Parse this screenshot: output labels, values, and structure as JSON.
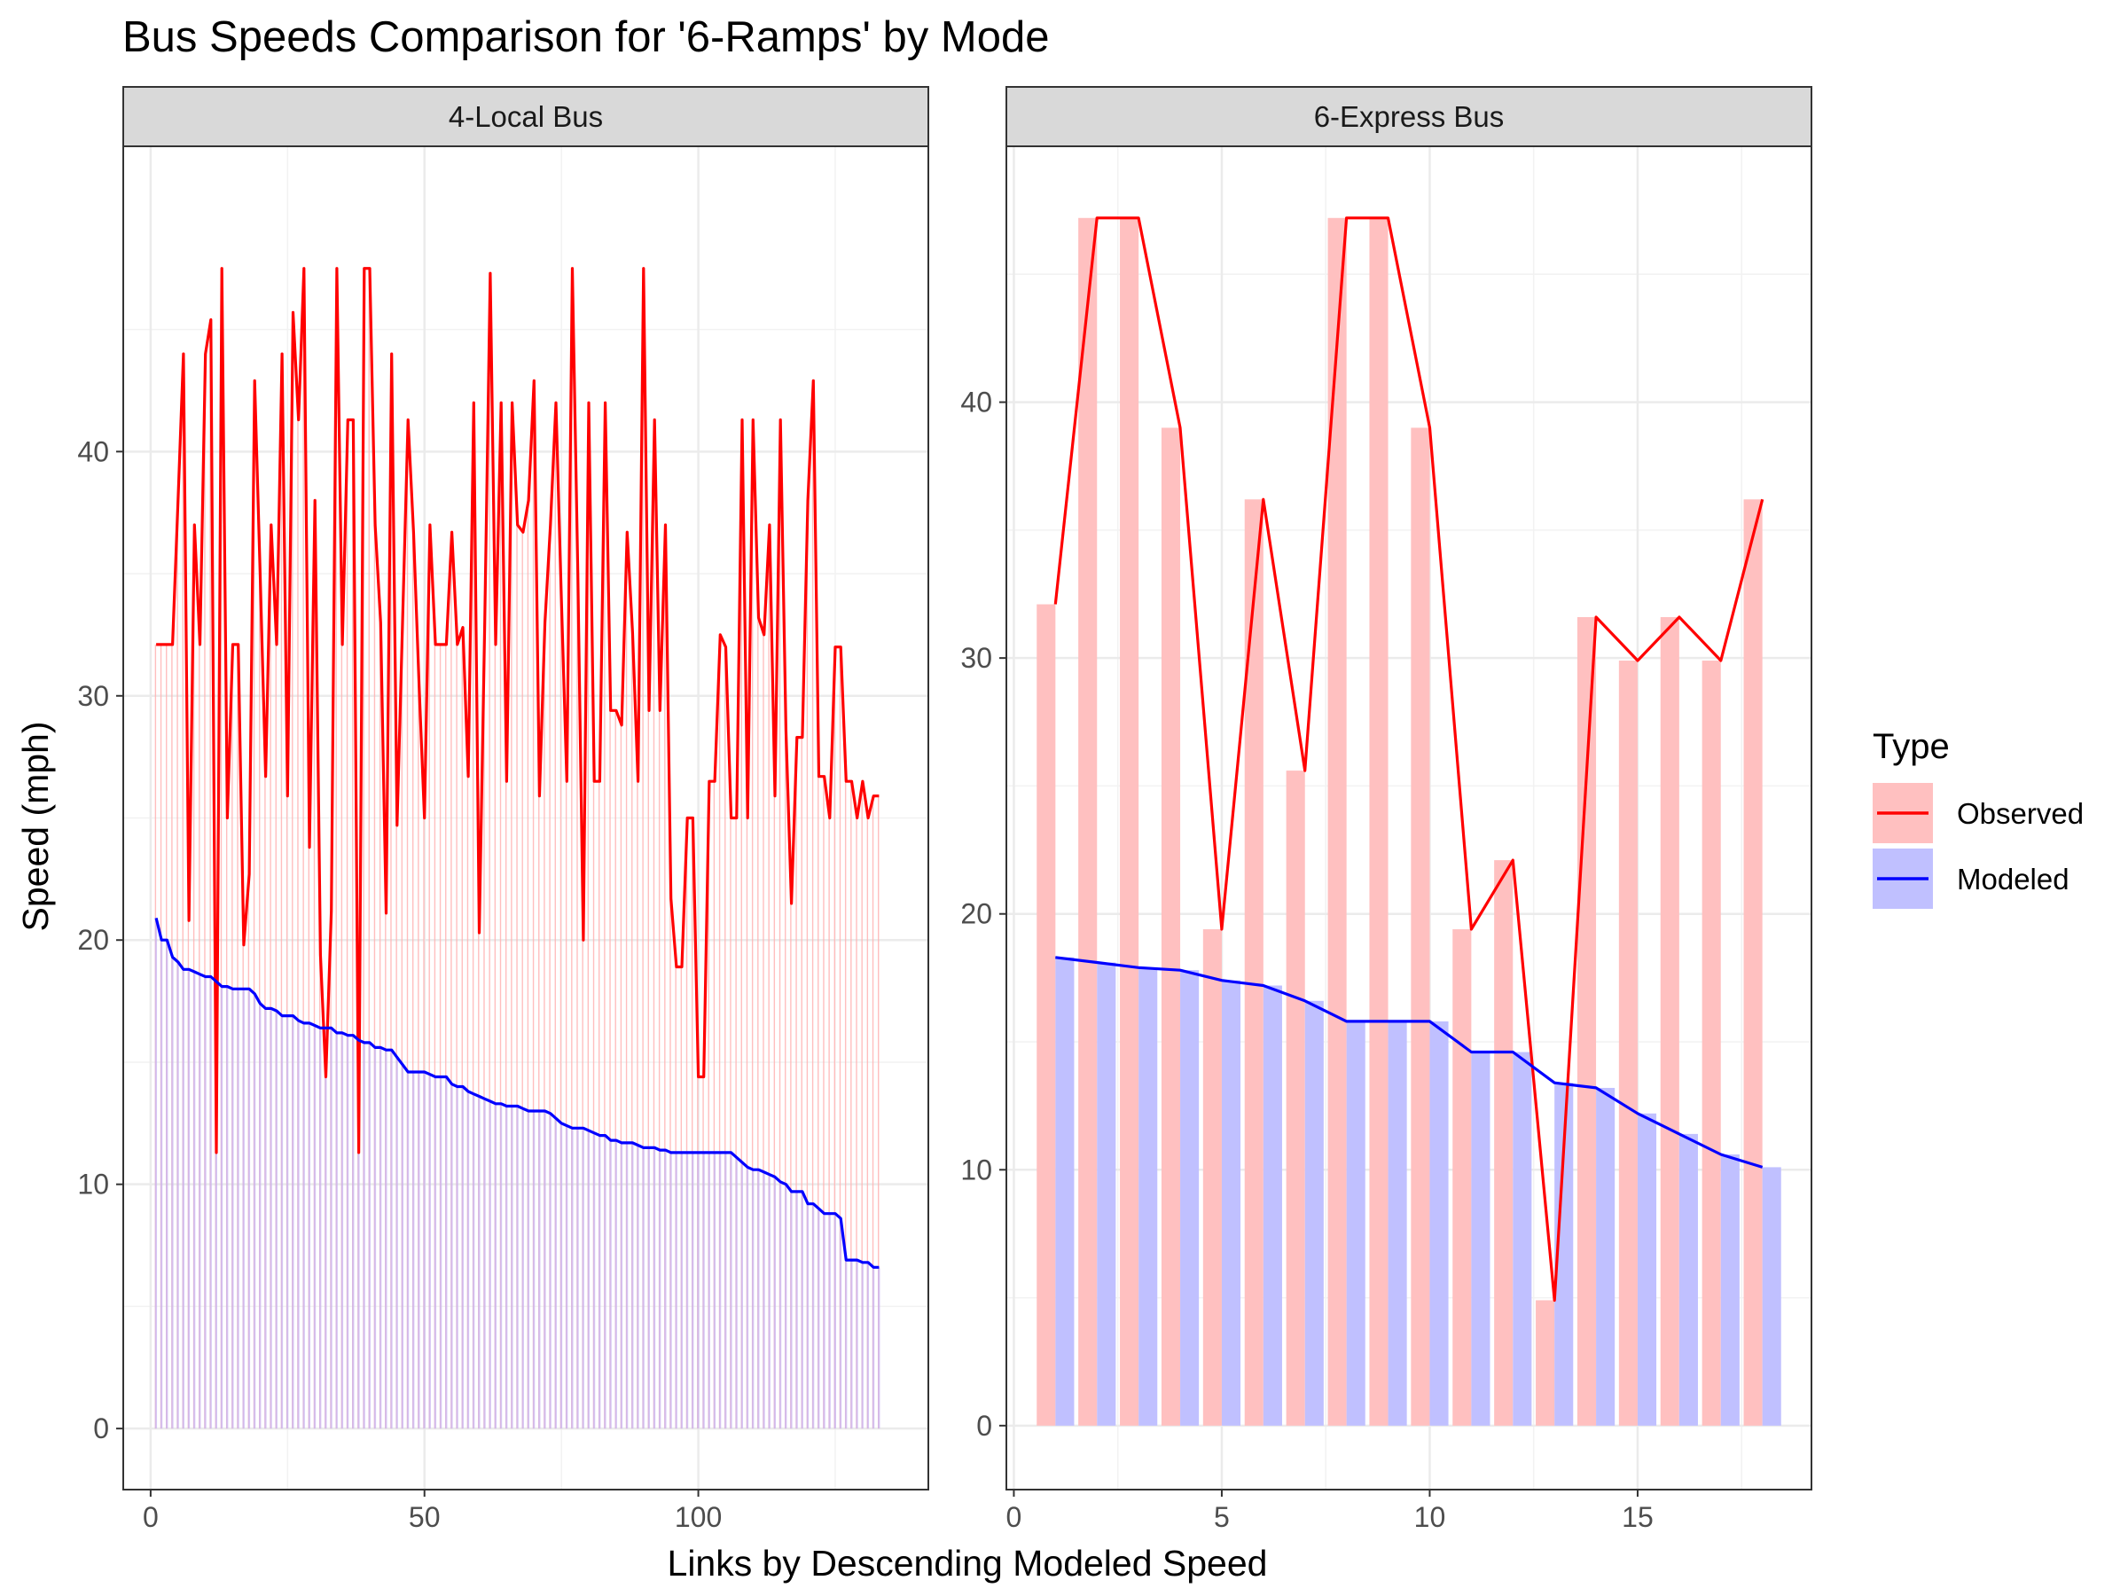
{
  "chart_data": {
    "type": "bar",
    "title": "Bus Speeds Comparison for '6-Ramps' by Mode",
    "xlabel": "Links by Descending Modeled Speed",
    "ylabel": "Speed (mph)",
    "legend": {
      "title": "Type",
      "position": "right",
      "items": [
        {
          "name": "Observed",
          "color": "#ff0000",
          "fill": "#ffc0c0"
        },
        {
          "name": "Modeled",
          "color": "#0000ff",
          "fill": "#c0c0ff"
        }
      ]
    },
    "grid": true,
    "facets": [
      {
        "name": "4-Local Bus",
        "xlim": [
          -5,
          142
        ],
        "ylim": [
          -2.5,
          52.5
        ],
        "xticks": [
          0,
          50,
          100
        ],
        "yticks": [
          0,
          10,
          20,
          30,
          40
        ],
        "series": [
          {
            "name": "Observed",
            "x": [
              1,
              2,
              3,
              4,
              5,
              6,
              7,
              8,
              9,
              10,
              11,
              12,
              13,
              14,
              15,
              16,
              17,
              18,
              19,
              20,
              21,
              22,
              23,
              24,
              25,
              26,
              27,
              28,
              29,
              30,
              31,
              32,
              33,
              34,
              35,
              36,
              37,
              38,
              39,
              40,
              41,
              42,
              43,
              44,
              45,
              46,
              47,
              48,
              49,
              50,
              51,
              52,
              53,
              54,
              55,
              56,
              57,
              58,
              59,
              60,
              61,
              62,
              63,
              64,
              65,
              66,
              67,
              68,
              69,
              70,
              71,
              72,
              73,
              74,
              75,
              76,
              77,
              78,
              79,
              80,
              81,
              82,
              83,
              84,
              85,
              86,
              87,
              88,
              89,
              90,
              91,
              92,
              93,
              94,
              95,
              96,
              97,
              98,
              99,
              100,
              101,
              102,
              103,
              104,
              105,
              106,
              107,
              108,
              109,
              110,
              111,
              112,
              113,
              114,
              115,
              116,
              117,
              118,
              119,
              120,
              121,
              122,
              123,
              124,
              125,
              126,
              127,
              128,
              129,
              130,
              131,
              132,
              133
            ],
            "values": [
              32.1,
              32.1,
              32.1,
              32.1,
              38,
              44,
              20.8,
              37,
              32.1,
              44,
              45.4,
              11.3,
              47.5,
              25,
              32.1,
              32.1,
              19.8,
              22.7,
              42.9,
              35,
              26.7,
              37,
              32.1,
              44,
              25.9,
              45.7,
              41.3,
              47.5,
              23.8,
              38,
              19.4,
              14.4,
              21.2,
              47.5,
              32.1,
              41.3,
              41.3,
              11.3,
              47.5,
              47.5,
              37,
              33,
              21.1,
              44,
              24.7,
              33,
              41.3,
              36.7,
              30.5,
              25,
              37,
              32.1,
              32.1,
              32.1,
              36.7,
              32.1,
              32.8,
              26.7,
              42,
              20.3,
              33,
              47.3,
              32.1,
              42,
              26.5,
              42,
              37,
              36.7,
              38,
              42.9,
              25.9,
              33,
              37,
              42,
              34,
              26.5,
              47.5,
              35,
              20,
              42,
              26.5,
              26.5,
              42,
              29.4,
              29.4,
              28.8,
              36.7,
              32.6,
              26.5,
              47.5,
              29.4,
              41.3,
              29.4,
              37,
              21.7,
              18.9,
              18.9,
              25,
              25,
              14.4,
              14.4,
              26.5,
              26.5,
              32.5,
              32,
              25,
              25,
              41.3,
              25,
              41.3,
              33.2,
              32.5,
              37,
              25.9,
              41.3,
              28.6,
              21.5,
              28.3,
              28.3,
              38,
              42.9,
              26.7,
              26.7,
              25,
              32,
              32,
              26.5,
              26.5,
              25,
              26.5,
              25,
              25.9,
              25.9
            ]
          },
          {
            "name": "Modeled",
            "x": [
              1,
              2,
              3,
              4,
              5,
              6,
              7,
              8,
              9,
              10,
              11,
              12,
              13,
              14,
              15,
              16,
              17,
              18,
              19,
              20,
              21,
              22,
              23,
              24,
              25,
              26,
              27,
              28,
              29,
              30,
              31,
              32,
              33,
              34,
              35,
              36,
              37,
              38,
              39,
              40,
              41,
              42,
              43,
              44,
              45,
              46,
              47,
              48,
              49,
              50,
              51,
              52,
              53,
              54,
              55,
              56,
              57,
              58,
              59,
              60,
              61,
              62,
              63,
              64,
              65,
              66,
              67,
              68,
              69,
              70,
              71,
              72,
              73,
              74,
              75,
              76,
              77,
              78,
              79,
              80,
              81,
              82,
              83,
              84,
              85,
              86,
              87,
              88,
              89,
              90,
              91,
              92,
              93,
              94,
              95,
              96,
              97,
              98,
              99,
              100,
              101,
              102,
              103,
              104,
              105,
              106,
              107,
              108,
              109,
              110,
              111,
              112,
              113,
              114,
              115,
              116,
              117,
              118,
              119,
              120,
              121,
              122,
              123,
              124,
              125,
              126,
              127,
              128,
              129,
              130,
              131,
              132,
              133
            ],
            "values": [
              20.9,
              20,
              20,
              19.3,
              19.1,
              18.8,
              18.8,
              18.7,
              18.6,
              18.5,
              18.5,
              18.3,
              18.1,
              18.1,
              18,
              18,
              18,
              18,
              17.8,
              17.4,
              17.2,
              17.2,
              17.1,
              16.9,
              16.9,
              16.9,
              16.7,
              16.6,
              16.6,
              16.5,
              16.4,
              16.4,
              16.4,
              16.2,
              16.2,
              16.1,
              16.1,
              15.9,
              15.8,
              15.8,
              15.6,
              15.6,
              15.5,
              15.5,
              15.2,
              14.9,
              14.6,
              14.6,
              14.6,
              14.6,
              14.5,
              14.4,
              14.4,
              14.4,
              14.1,
              14,
              14,
              13.8,
              13.7,
              13.6,
              13.5,
              13.4,
              13.3,
              13.3,
              13.2,
              13.2,
              13.2,
              13.1,
              13,
              13,
              13,
              13,
              12.9,
              12.7,
              12.5,
              12.4,
              12.3,
              12.3,
              12.3,
              12.2,
              12.1,
              12,
              12,
              11.8,
              11.8,
              11.7,
              11.7,
              11.7,
              11.6,
              11.5,
              11.5,
              11.5,
              11.4,
              11.4,
              11.3,
              11.3,
              11.3,
              11.3,
              11.3,
              11.3,
              11.3,
              11.3,
              11.3,
              11.3,
              11.3,
              11.3,
              11.1,
              10.9,
              10.7,
              10.6,
              10.6,
              10.5,
              10.4,
              10.3,
              10.1,
              10,
              9.7,
              9.7,
              9.7,
              9.2,
              9.2,
              9,
              8.8,
              8.8,
              8.8,
              8.6,
              6.9,
              6.9,
              6.9,
              6.8,
              6.8,
              6.6,
              6.6
            ]
          }
        ]
      },
      {
        "name": "6-Express Bus",
        "xlim": [
          -0.18,
          19.18
        ],
        "ylim": [
          -2.5,
          50
        ],
        "xticks": [
          0,
          5,
          10,
          15
        ],
        "yticks": [
          0,
          10,
          20,
          30,
          40
        ],
        "series": [
          {
            "name": "Observed",
            "x": [
              1,
              2,
              3,
              4,
              5,
              6,
              7,
              8,
              9,
              10,
              11,
              12,
              13,
              14,
              15,
              16,
              17,
              18
            ],
            "values": [
              32.1,
              47.2,
              47.2,
              39,
              19.4,
              36.2,
              25.6,
              47.2,
              47.2,
              39,
              19.4,
              22.1,
              4.9,
              31.6,
              29.9,
              31.6,
              29.9,
              36.2
            ]
          },
          {
            "name": "Modeled",
            "x": [
              1,
              2,
              3,
              4,
              5,
              6,
              7,
              8,
              9,
              10,
              11,
              12,
              13,
              14,
              15,
              16,
              17,
              18
            ],
            "values": [
              18.3,
              18.1,
              17.9,
              17.8,
              17.4,
              17.2,
              16.6,
              15.8,
              15.8,
              15.8,
              14.6,
              14.6,
              13.4,
              13.2,
              12.2,
              11.4,
              10.6,
              10.1
            ]
          }
        ]
      }
    ]
  }
}
